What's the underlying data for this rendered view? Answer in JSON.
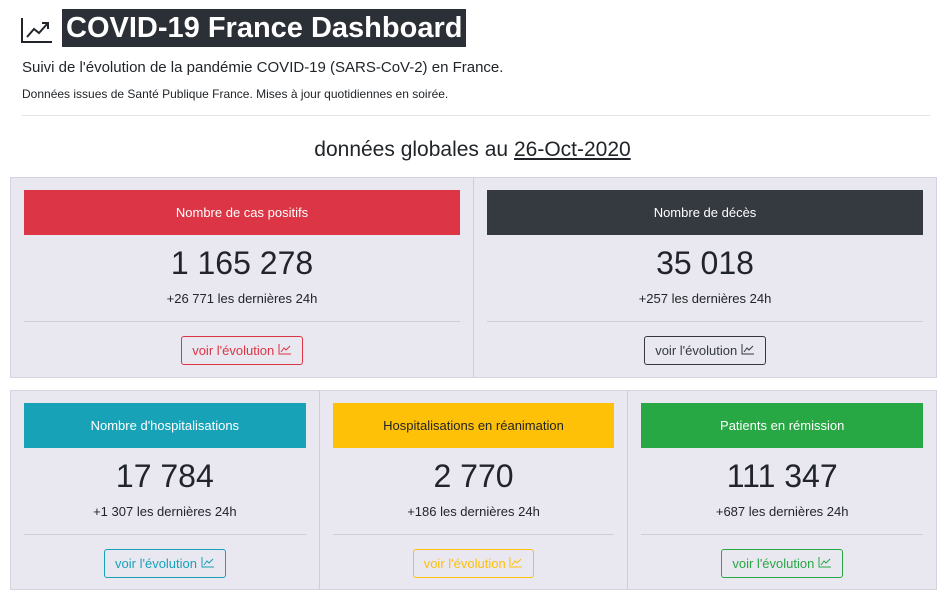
{
  "header": {
    "title": "COVID-19 France Dashboard",
    "subtitle": "Suivi de l'évolution de la pandémie COVID-19 (SARS-CoV-2) en France.",
    "note": "Données issues de Santé Publique France. Mises à jour quotidiennes en soirée."
  },
  "summary": {
    "label": "données globales au",
    "date": "26-Oct-2020"
  },
  "rows": [
    {
      "cards": [
        {
          "title": "Nombre de cas positifs",
          "value": "1 165 278",
          "delta": "+26 771 les dernières 24h",
          "button": "voir l'évolution",
          "color": "#dc3545",
          "text_color": "#ffffff"
        },
        {
          "title": "Nombre de décès",
          "value": "35 018",
          "delta": "+257 les dernières 24h",
          "button": "voir l'évolution",
          "color": "#343a40",
          "text_color": "#ffffff"
        }
      ]
    },
    {
      "cards": [
        {
          "title": "Nombre d'hospitalisations",
          "value": "17 784",
          "delta": "+1 307 les dernières 24h",
          "button": "voir l'évolution",
          "color": "#17a2b8",
          "text_color": "#ffffff"
        },
        {
          "title": "Hospitalisations en réanimation",
          "value": "2 770",
          "delta": "+186 les dernières 24h",
          "button": "voir l'évolution",
          "color": "#ffc107",
          "text_color": "#212529"
        },
        {
          "title": "Patients en rémission",
          "value": "111 347",
          "delta": "+687 les dernières 24h",
          "button": "voir l'évolution",
          "color": "#28a745",
          "text_color": "#ffffff"
        }
      ]
    }
  ]
}
